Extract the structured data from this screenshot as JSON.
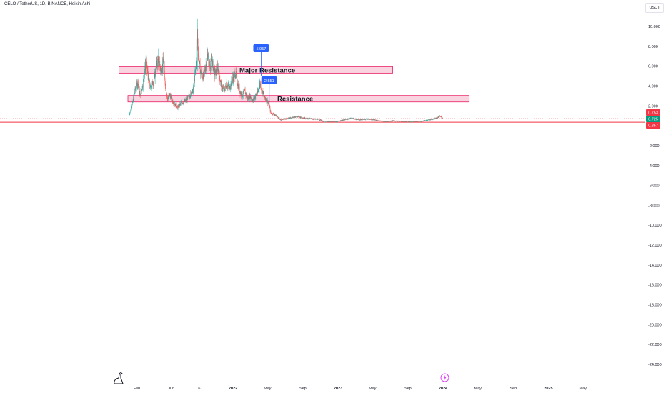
{
  "header": {
    "title": "CELO / TetherUS, 1D, BINANCE, Heikin Ashi",
    "currency": "USDT"
  },
  "icons": {
    "logo": "tradingview-dino-icon",
    "event": "lightning-event-icon"
  },
  "colors": {
    "up": "#26a69a",
    "down": "#ef5350",
    "zone_fill": "#f8c8d8",
    "zone_stroke": "#e91e63",
    "label_blue": "#2962ff",
    "support_line": "#f23645"
  },
  "chart_data": {
    "type": "candlestick",
    "y_ticks": [
      "10.000",
      "8.000",
      "6.000",
      "4.000",
      "2.000",
      "-2.000",
      "-4.000",
      "-6.000",
      "-8.000",
      "-10.000",
      "-12.000",
      "-14.000",
      "-16.000",
      "-18.000",
      "-20.000",
      "-22.000",
      "-24.000"
    ],
    "y_tick_values": [
      10,
      8,
      6,
      4,
      2,
      -2,
      -4,
      -6,
      -8,
      -10,
      -12,
      -14,
      -16,
      -18,
      -20,
      -22,
      -24
    ],
    "x_ticks": [
      {
        "label": "Feb",
        "date": "2021-02-01",
        "bold": false
      },
      {
        "label": "Jun",
        "date": "2021-06-01",
        "bold": false
      },
      {
        "label": "6",
        "date": "2021-09-06",
        "bold": false
      },
      {
        "label": "2022",
        "date": "2022-01-01",
        "bold": true
      },
      {
        "label": "May",
        "date": "2022-05-01",
        "bold": false
      },
      {
        "label": "Sep",
        "date": "2022-09-01",
        "bold": false
      },
      {
        "label": "2023",
        "date": "2023-01-01",
        "bold": true
      },
      {
        "label": "May",
        "date": "2023-05-01",
        "bold": false
      },
      {
        "label": "Sep",
        "date": "2023-09-01",
        "bold": false
      },
      {
        "label": "2024",
        "date": "2024-01-01",
        "bold": true
      },
      {
        "label": "May",
        "date": "2024-05-01",
        "bold": false
      },
      {
        "label": "Sep",
        "date": "2024-09-01",
        "bold": false
      },
      {
        "label": "2025",
        "date": "2025-01-01",
        "bold": true
      },
      {
        "label": "May",
        "date": "2025-05-01",
        "bold": false
      }
    ],
    "price_labels": [
      {
        "text": "0.753",
        "value": 0.753,
        "color": "#f23645"
      },
      {
        "text": "0.725",
        "value": 0.725,
        "color": "#089981"
      },
      {
        "text": "0.357",
        "value": 0.357,
        "color": "#f23645"
      }
    ],
    "support_line_value": 0.357,
    "zones": [
      {
        "label": "Major Resistance",
        "low": 5.3,
        "high": 5.95,
        "start": "2020-12-01",
        "end": "2023-07-10"
      },
      {
        "label": "Resistance",
        "low": 2.4,
        "high": 3.05,
        "start": "2021-01-01",
        "end": "2024-04-01"
      }
    ],
    "callouts": [
      {
        "text": "5.957",
        "value": 5.957,
        "date": "2022-04-09"
      },
      {
        "text": "2.551",
        "value": 2.551,
        "date": "2022-05-07"
      }
    ],
    "series_points": [
      [
        "2021-01-05",
        1.1
      ],
      [
        "2021-01-15",
        2.0
      ],
      [
        "2021-01-25",
        3.5
      ],
      [
        "2021-02-05",
        4.5
      ],
      [
        "2021-02-12",
        3.0
      ],
      [
        "2021-02-22",
        4.2
      ],
      [
        "2021-03-05",
        6.5
      ],
      [
        "2021-03-12",
        5.0
      ],
      [
        "2021-03-20",
        3.8
      ],
      [
        "2021-04-01",
        4.5
      ],
      [
        "2021-04-10",
        6.0
      ],
      [
        "2021-04-18",
        6.9
      ],
      [
        "2021-04-25",
        5.5
      ],
      [
        "2021-05-05",
        6.5
      ],
      [
        "2021-05-12",
        3.8
      ],
      [
        "2021-05-19",
        2.6
      ],
      [
        "2021-05-25",
        3.2
      ],
      [
        "2021-06-05",
        2.5
      ],
      [
        "2021-06-22",
        1.8
      ],
      [
        "2021-07-05",
        2.3
      ],
      [
        "2021-07-20",
        2.5
      ],
      [
        "2021-08-01",
        3.0
      ],
      [
        "2021-08-15",
        3.5
      ],
      [
        "2021-08-25",
        5.8
      ],
      [
        "2021-08-30",
        9.5
      ],
      [
        "2021-09-03",
        7.0
      ],
      [
        "2021-09-10",
        5.5
      ],
      [
        "2021-09-20",
        4.8
      ],
      [
        "2021-09-28",
        6.0
      ],
      [
        "2021-10-05",
        7.2
      ],
      [
        "2021-10-12",
        6.0
      ],
      [
        "2021-10-20",
        6.5
      ],
      [
        "2021-10-30",
        5.2
      ],
      [
        "2021-11-10",
        5.8
      ],
      [
        "2021-11-20",
        4.2
      ],
      [
        "2021-12-01",
        3.5
      ],
      [
        "2021-12-10",
        4.2
      ],
      [
        "2021-12-20",
        3.8
      ],
      [
        "2022-01-01",
        4.8
      ],
      [
        "2022-01-10",
        5.3
      ],
      [
        "2022-01-20",
        3.9
      ],
      [
        "2022-02-01",
        3.0
      ],
      [
        "2022-02-10",
        3.5
      ],
      [
        "2022-02-22",
        2.7
      ],
      [
        "2022-03-01",
        3.0
      ],
      [
        "2022-03-10",
        2.5
      ],
      [
        "2022-03-20",
        3.0
      ],
      [
        "2022-03-28",
        3.3
      ],
      [
        "2022-04-05",
        4.3
      ],
      [
        "2022-04-12",
        3.6
      ],
      [
        "2022-04-20",
        2.9
      ],
      [
        "2022-04-28",
        2.6
      ],
      [
        "2022-05-06",
        2.2
      ],
      [
        "2022-05-12",
        1.3
      ],
      [
        "2022-05-20",
        1.2
      ],
      [
        "2022-06-01",
        1.0
      ],
      [
        "2022-06-15",
        0.6
      ],
      [
        "2022-07-01",
        0.7
      ],
      [
        "2022-07-20",
        0.8
      ],
      [
        "2022-08-10",
        0.95
      ],
      [
        "2022-09-01",
        0.8
      ],
      [
        "2022-10-01",
        0.7
      ],
      [
        "2022-11-01",
        0.6
      ],
      [
        "2022-11-15",
        0.35
      ],
      [
        "2022-12-01",
        0.45
      ],
      [
        "2022-12-25",
        0.4
      ],
      [
        "2023-01-15",
        0.55
      ],
      [
        "2023-02-15",
        0.75
      ],
      [
        "2023-03-15",
        0.6
      ],
      [
        "2023-04-15",
        0.7
      ],
      [
        "2023-05-15",
        0.55
      ],
      [
        "2023-06-15",
        0.4
      ],
      [
        "2023-07-10",
        0.5
      ],
      [
        "2023-08-15",
        0.42
      ],
      [
        "2023-09-15",
        0.4
      ],
      [
        "2023-10-15",
        0.45
      ],
      [
        "2023-11-15",
        0.6
      ],
      [
        "2023-12-10",
        0.8
      ],
      [
        "2023-12-22",
        0.95
      ],
      [
        "2024-01-01",
        0.753
      ]
    ]
  }
}
